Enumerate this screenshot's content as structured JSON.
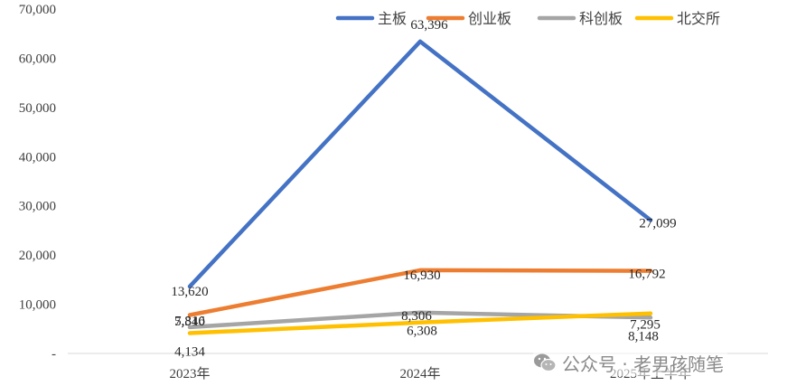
{
  "chart_data": {
    "type": "line",
    "categories": [
      "2023年",
      "2024年",
      "2025年上半年"
    ],
    "series": [
      {
        "name": "主板",
        "color": "#4472C4",
        "values": [
          13620,
          63396,
          27099
        ]
      },
      {
        "name": "创业板",
        "color": "#ED7D31",
        "values": [
          7816,
          16930,
          16792
        ]
      },
      {
        "name": "科创板",
        "color": "#A5A5A5",
        "values": [
          5340,
          8306,
          7295
        ]
      },
      {
        "name": "北交所",
        "color": "#FFC000",
        "values": [
          4134,
          6308,
          8148
        ]
      }
    ],
    "ylim": [
      0,
      70000
    ],
    "yticks": [
      "-",
      "10,000",
      "20,000",
      "30,000",
      "40,000",
      "50,000",
      "60,000",
      "70,000"
    ],
    "legend_position": "top-right",
    "grid": false
  },
  "watermark": {
    "text": "公众号 · 老男孩随笔",
    "icon": "wechat-icon"
  }
}
